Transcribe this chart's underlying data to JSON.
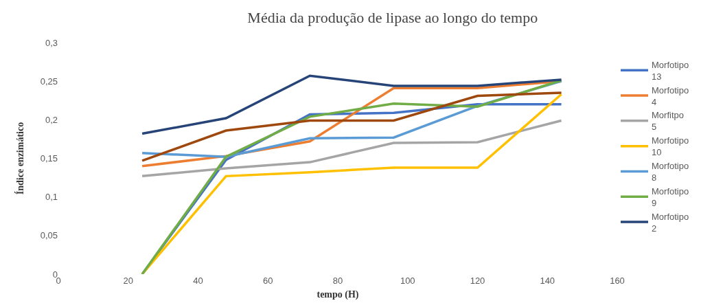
{
  "chart_data": {
    "type": "line",
    "title": "Média da produção de lipase ao longo do tempo",
    "xlabel": "tempo (H)",
    "ylabel": "Índice enzimático",
    "x": [
      24,
      48,
      72,
      96,
      120,
      144
    ],
    "series": [
      {
        "name": "Morfotipo 13",
        "color": "#4472c4",
        "values": [
          0,
          0.148,
          0.207,
          0.209,
          0.22,
          0.22
        ]
      },
      {
        "name": "Morfotipo 4",
        "color": "#ed7d31",
        "values": [
          0.14,
          0.153,
          0.172,
          0.241,
          0.241,
          0.25
        ]
      },
      {
        "name": "Morfitpo 5",
        "color": "#a5a5a5",
        "values": [
          0.127,
          0.137,
          0.145,
          0.17,
          0.171,
          0.199
        ]
      },
      {
        "name": "Morfotipo 10",
        "color": "#ffc000",
        "values": [
          0,
          0.127,
          0.132,
          0.138,
          0.138,
          0.233
        ]
      },
      {
        "name": "Morfotipo 8",
        "color": "#5b9bd5",
        "values": [
          0.157,
          0.152,
          0.176,
          0.177,
          0.218,
          0.25
        ]
      },
      {
        "name": "Morfotipo 9",
        "color": "#70ad47",
        "values": [
          0,
          0.152,
          0.204,
          0.221,
          0.217,
          0.251
        ]
      },
      {
        "name": "Morfotipo 2",
        "color": "#264478",
        "values": [
          0.182,
          0.202,
          0.257,
          0.244,
          0.244,
          0.252
        ]
      },
      {
        "color": "#9e480e",
        "values": [
          0.147,
          0.186,
          0.199,
          0.199,
          0.231,
          0.235
        ]
      }
    ],
    "xlim": [
      0,
      160
    ],
    "xticks": [
      0,
      20,
      40,
      60,
      80,
      100,
      120,
      140,
      160
    ],
    "ylim": [
      0,
      0.3
    ],
    "yticks": [
      {
        "value": 0,
        "label": "0"
      },
      {
        "value": 0.05,
        "label": "0,05"
      },
      {
        "value": 0.1,
        "label": "0,1"
      },
      {
        "value": 0.15,
        "label": "0,15"
      },
      {
        "value": 0.2,
        "label": "0,2"
      },
      {
        "value": 0.25,
        "label": "0,25"
      },
      {
        "value": 0.3,
        "label": "0,3"
      }
    ],
    "grid": false,
    "legend": "right",
    "marker": "none",
    "line_style": "solid"
  }
}
